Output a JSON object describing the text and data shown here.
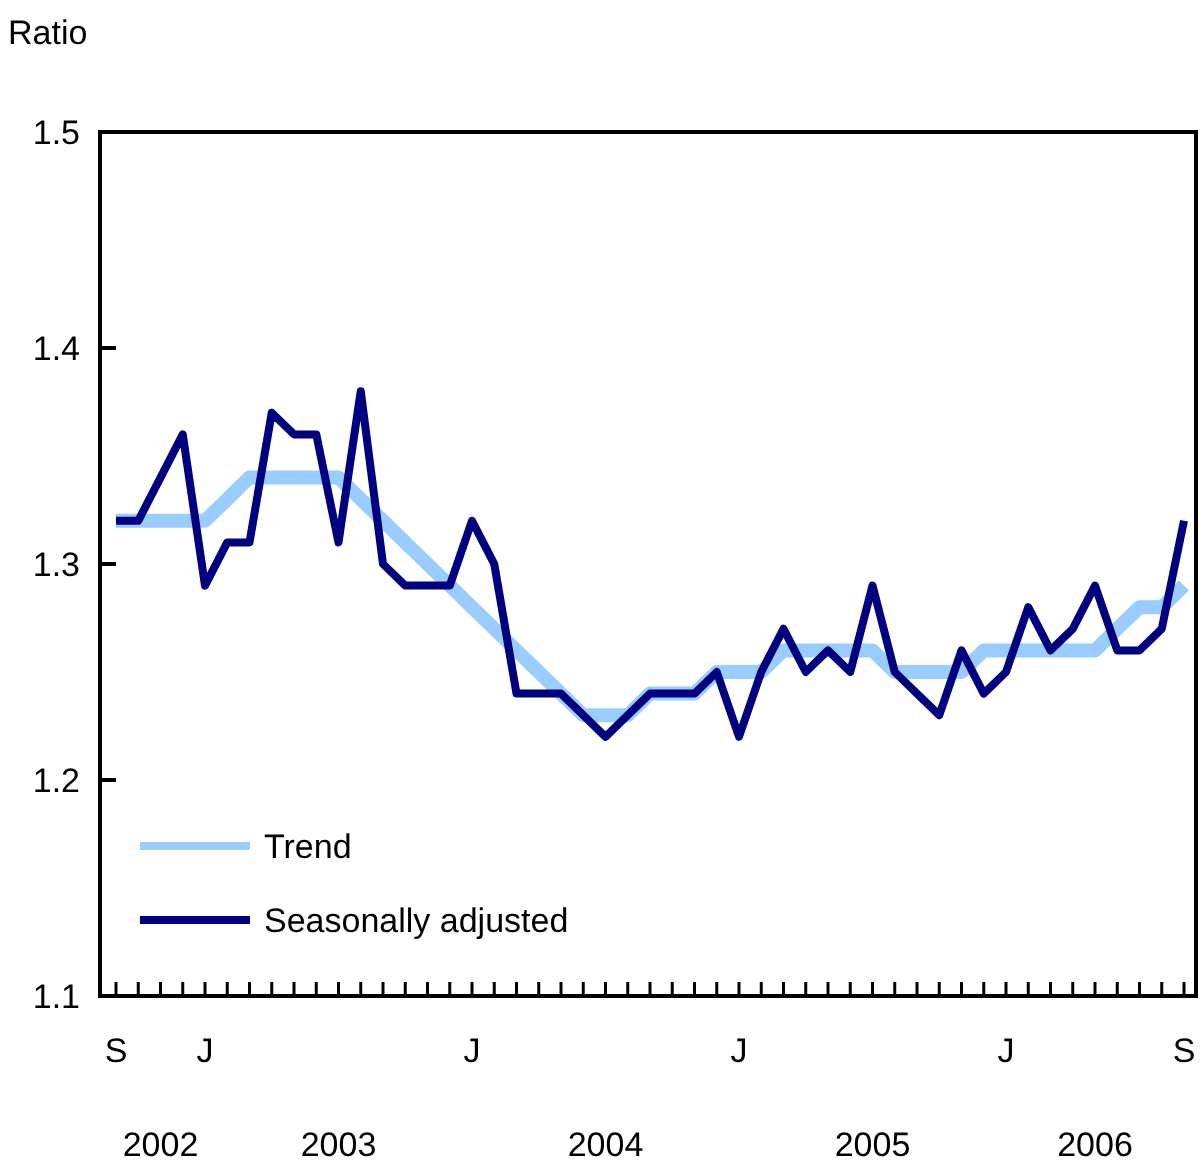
{
  "chart_data": {
    "type": "line",
    "ylabel": "Ratio",
    "categories": [
      "S",
      null,
      null,
      null,
      "J",
      null,
      null,
      null,
      null,
      null,
      null,
      null,
      null,
      null,
      null,
      null,
      "J",
      null,
      null,
      null,
      null,
      null,
      null,
      null,
      null,
      null,
      null,
      null,
      "J",
      null,
      null,
      null,
      null,
      null,
      null,
      null,
      null,
      null,
      null,
      null,
      "J",
      null,
      null,
      null,
      null,
      null,
      null,
      null,
      "S"
    ],
    "series": [
      {
        "name": "Trend",
        "color": "#99ccff",
        "values": [
          1.32,
          1.32,
          1.32,
          1.32,
          1.32,
          1.33,
          1.34,
          1.34,
          1.34,
          1.34,
          1.34,
          1.33,
          1.32,
          1.31,
          1.3,
          1.29,
          1.28,
          1.27,
          1.26,
          1.25,
          1.24,
          1.23,
          1.23,
          1.23,
          1.24,
          1.24,
          1.24,
          1.25,
          1.25,
          1.25,
          1.26,
          1.26,
          1.26,
          1.26,
          1.26,
          1.25,
          1.25,
          1.25,
          1.25,
          1.26,
          1.26,
          1.26,
          1.26,
          1.26,
          1.26,
          1.27,
          1.28,
          1.28,
          1.29
        ]
      },
      {
        "name": "Seasonally adjusted",
        "color": "#000080",
        "values": [
          1.32,
          1.32,
          1.34,
          1.36,
          1.29,
          1.31,
          1.31,
          1.37,
          1.36,
          1.36,
          1.31,
          1.38,
          1.3,
          1.29,
          1.29,
          1.29,
          1.32,
          1.3,
          1.24,
          1.24,
          1.24,
          1.23,
          1.22,
          1.23,
          1.24,
          1.24,
          1.24,
          1.25,
          1.22,
          1.25,
          1.27,
          1.25,
          1.26,
          1.25,
          1.29,
          1.25,
          1.24,
          1.23,
          1.26,
          1.24,
          1.25,
          1.28,
          1.26,
          1.27,
          1.29,
          1.26,
          1.26,
          1.27,
          1.32
        ]
      }
    ],
    "ylim": [
      1.1,
      1.5
    ],
    "yticks": [
      1.1,
      1.2,
      1.3,
      1.4,
      1.5
    ],
    "annotations": [
      "2002",
      "2003",
      "2004",
      "2005",
      "2006"
    ],
    "legend": "bottom left",
    "grid": false,
    "marker": "none",
    "line_style": "solid"
  }
}
